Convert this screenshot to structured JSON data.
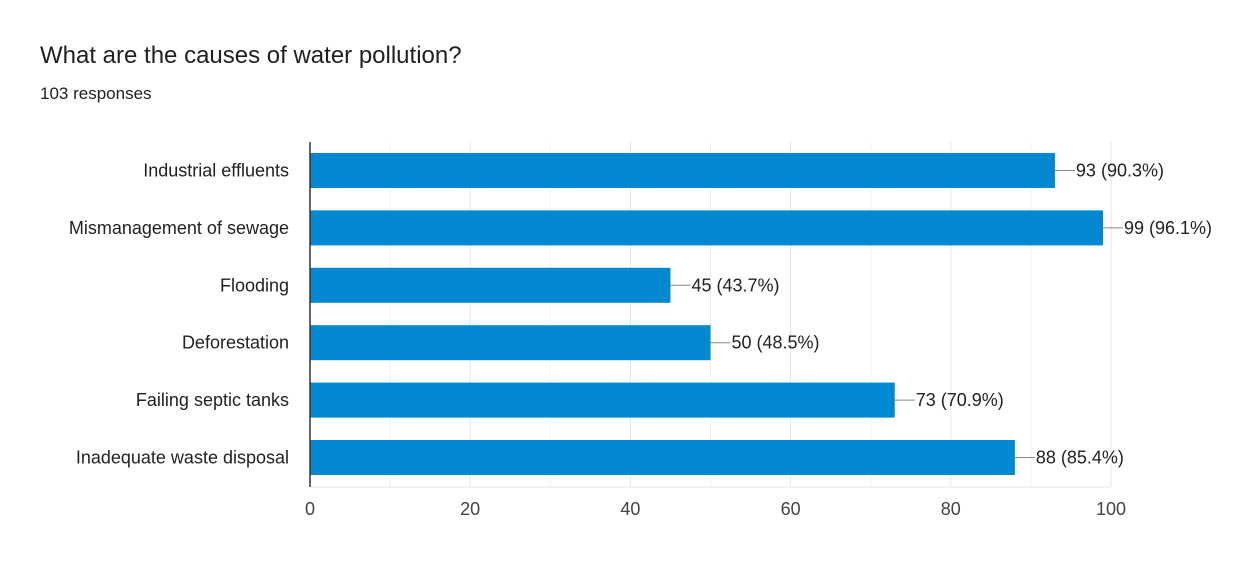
{
  "header": {
    "title": "What are the causes of water pollution?",
    "subtitle": "103 responses"
  },
  "colors": {
    "bar": "#0288d1",
    "grid": "#e6e6e6",
    "axis": "#333333",
    "leader": "#888888"
  },
  "chart_data": {
    "type": "bar",
    "orientation": "horizontal",
    "categories": [
      "Industrial effluents",
      "Mismanagement of sewage",
      "Flooding",
      "Deforestation",
      "Failing septic tanks",
      "Inadequate waste disposal"
    ],
    "values": [
      93,
      99,
      45,
      50,
      73,
      88
    ],
    "value_labels": [
      "93 (90.3%)",
      "99 (96.1%)",
      "45 (43.7%)",
      "50 (48.5%)",
      "73 (70.9%)",
      "88 (85.4%)"
    ],
    "xlim": [
      0,
      100
    ],
    "xticks": [
      0,
      20,
      40,
      60,
      80,
      100
    ],
    "grid": true
  }
}
